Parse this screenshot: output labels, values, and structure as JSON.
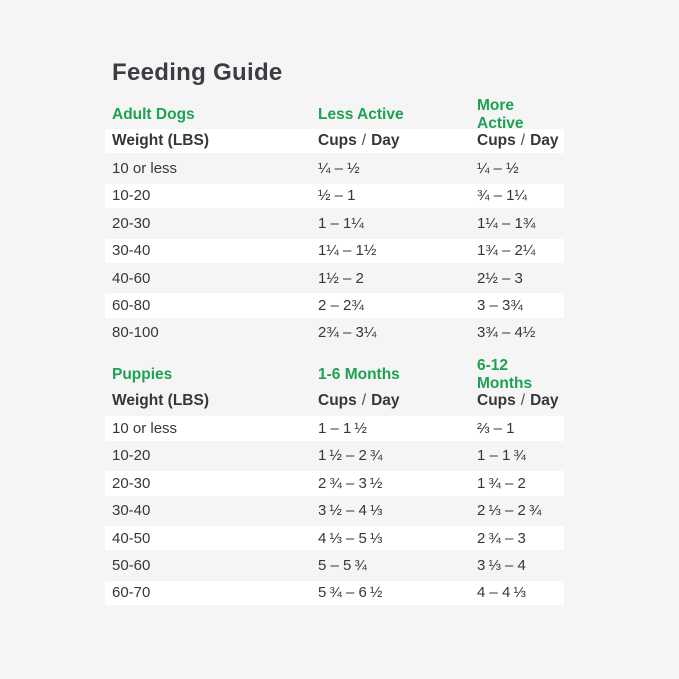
{
  "page": {
    "title": "Feeding Guide"
  },
  "theme": {
    "background": "#f5f5f5",
    "row_stripe_white": "#ffffff",
    "accent_green": "#1ea152",
    "text_dark": "#34383c"
  },
  "header_labels": {
    "weight": "Weight (LBS)",
    "cups": "Cups",
    "slash": "/",
    "day": "Day"
  },
  "chart_data": [
    {
      "type": "table",
      "section": "Adult Dogs",
      "col2": "Less Active",
      "col3": "More Active",
      "unit_label": "Cups / Day",
      "column_headers": [
        "Weight (LBS)",
        "Cups / Day",
        "Cups / Day"
      ],
      "rows": [
        {
          "w": "10 or less",
          "a": "¼ – ½",
          "b": "¼ – ½"
        },
        {
          "w": "10-20",
          "a": "½ – 1",
          "b": "¾ – 1¼"
        },
        {
          "w": "20-30",
          "a": "1 – 1¼",
          "b": "1¼ – 1¾"
        },
        {
          "w": "30-40",
          "a": "1¼ – 1½",
          "b": "1¾ – 2¼"
        },
        {
          "w": "40-60",
          "a": "1½ – 2",
          "b": "2½ – 3"
        },
        {
          "w": "60-80",
          "a": "2 – 2¾",
          "b": "3 – 3¾"
        },
        {
          "w": "80-100",
          "a": "2¾ – 3¼",
          "b": "3¾ – 4½"
        }
      ]
    },
    {
      "type": "table",
      "section": "Puppies",
      "col2": "1-6 Months",
      "col3": "6-12 Months",
      "unit_label": "Cups / Day",
      "column_headers": [
        "Weight (LBS)",
        "Cups / Day",
        "Cups / Day"
      ],
      "rows": [
        {
          "w": "10 or less",
          "a": "1 – 1 ½",
          "b": "⅔ – 1"
        },
        {
          "w": "10-20",
          "a": "1 ½ – 2 ¾",
          "b": "1 – 1 ¾"
        },
        {
          "w": "20-30",
          "a": "2 ¾ – 3 ½",
          "b": "1 ¾ – 2"
        },
        {
          "w": "30-40",
          "a": "3 ½ – 4 ⅓",
          "b": "2 ⅓ – 2 ¾"
        },
        {
          "w": "40-50",
          "a": "4 ⅓ – 5 ⅓",
          "b": "2 ¾ – 3"
        },
        {
          "w": "50-60",
          "a": "5 – 5 ¾",
          "b": "3 ⅓ – 4"
        },
        {
          "w": "60-70",
          "a": "5 ¾ – 6 ½",
          "b": "4 – 4 ⅓"
        }
      ]
    }
  ]
}
